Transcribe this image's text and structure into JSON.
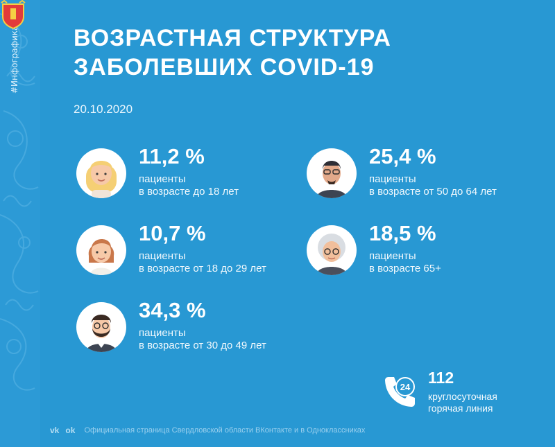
{
  "hashtag": "#Инфографика",
  "title_line1": "ВОЗРАСТНАЯ СТРУКТУРА",
  "title_line2": "ЗАБОЛЕВШИХ COVID-19",
  "date": "20.10.2020",
  "stats": [
    {
      "percent": "11,2 %",
      "line1": "пациенты",
      "line2": "в возрасте до 18 лет",
      "icon": "girl-avatar-icon"
    },
    {
      "percent": "10,7 %",
      "line1": "пациенты",
      "line2": "в возрасте от 18 до 29 лет",
      "icon": "young-woman-avatar-icon"
    },
    {
      "percent": "34,3 %",
      "line1": "пациенты",
      "line2": "в возрасте от 30 до 49 лет",
      "icon": "bearded-man-avatar-icon"
    },
    {
      "percent": "25,4 %",
      "line1": "пациенты",
      "line2": "в возрасте от 50 до 64 лет",
      "icon": "man-glasses-avatar-icon"
    },
    {
      "percent": "18,5 %",
      "line1": "пациенты",
      "line2": "в возрасте 65+",
      "icon": "elderly-woman-avatar-icon"
    }
  ],
  "hotline": {
    "number": "112",
    "line1": "круглосуточная",
    "line2": "горячая линия",
    "badge": "24",
    "icon": "phone-24-icon"
  },
  "footer": {
    "vk": "vk",
    "ok": "ok",
    "text": "Официальная страница Свердловской области ВКонтакте и в Одноклассниках"
  },
  "colors": {
    "background": "#2898d3",
    "text": "#ffffff",
    "skin": "#f7c9a8",
    "hair_blond": "#f5cf74"
  }
}
